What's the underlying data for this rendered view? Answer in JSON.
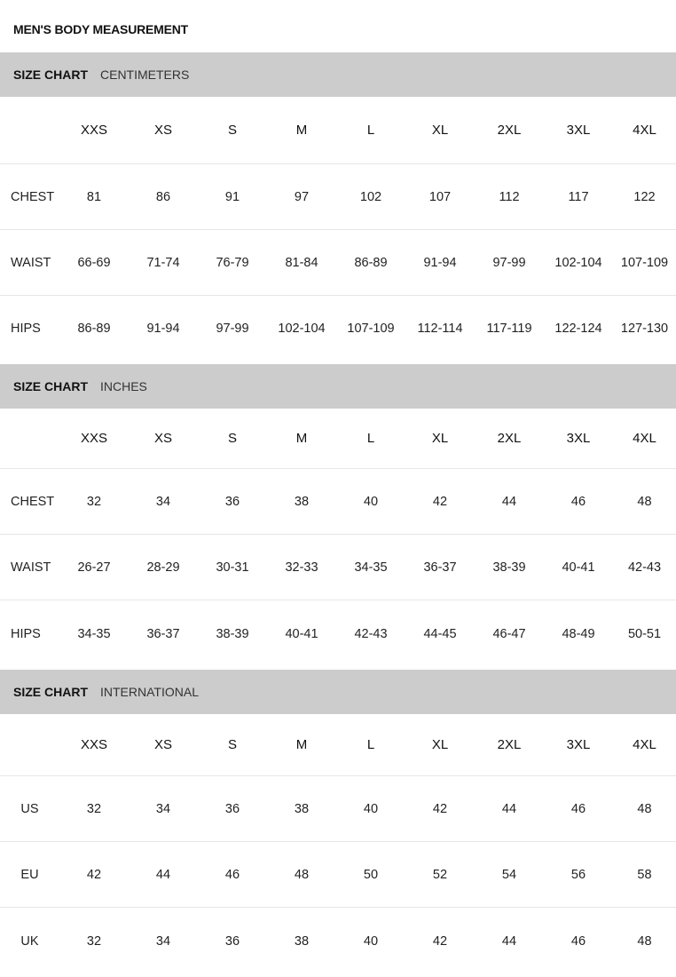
{
  "title": "MEN'S BODY MEASUREMENT",
  "sizes": [
    "XXS",
    "XS",
    "S",
    "M",
    "L",
    "XL",
    "2XL",
    "3XL",
    "4XL"
  ],
  "sections": [
    {
      "label": "SIZE CHART",
      "unit": "CENTIMETERS",
      "rows": [
        {
          "name": "CHEST",
          "values": [
            "81",
            "86",
            "91",
            "97",
            "102",
            "107",
            "112",
            "117",
            "122"
          ]
        },
        {
          "name": "WAIST",
          "values": [
            "66-69",
            "71-74",
            "76-79",
            "81-84",
            "86-89",
            "91-94",
            "97-99",
            "102-104",
            "107-109"
          ]
        },
        {
          "name": "HIPS",
          "values": [
            "86-89",
            "91-94",
            "97-99",
            "102-104",
            "107-109",
            "112-114",
            "117-119",
            "122-124",
            "127-130"
          ]
        }
      ]
    },
    {
      "label": "SIZE CHART",
      "unit": "INCHES",
      "rows": [
        {
          "name": "CHEST",
          "values": [
            "32",
            "34",
            "36",
            "38",
            "40",
            "42",
            "44",
            "46",
            "48"
          ]
        },
        {
          "name": "WAIST",
          "values": [
            "26-27",
            "28-29",
            "30-31",
            "32-33",
            "34-35",
            "36-37",
            "38-39",
            "40-41",
            "42-43"
          ]
        },
        {
          "name": "HIPS",
          "values": [
            "34-35",
            "36-37",
            "38-39",
            "40-41",
            "42-43",
            "44-45",
            "46-47",
            "48-49",
            "50-51"
          ]
        }
      ]
    },
    {
      "label": "SIZE CHART",
      "unit": "INTERNATIONAL",
      "rows": [
        {
          "name": "US",
          "values": [
            "32",
            "34",
            "36",
            "38",
            "40",
            "42",
            "44",
            "46",
            "48"
          ]
        },
        {
          "name": "EU",
          "values": [
            "42",
            "44",
            "46",
            "48",
            "50",
            "52",
            "54",
            "56",
            "58"
          ]
        },
        {
          "name": "UK",
          "values": [
            "32",
            "34",
            "36",
            "38",
            "40",
            "42",
            "44",
            "46",
            "48"
          ]
        }
      ]
    }
  ],
  "colors": {
    "header_bar": "#cccccc",
    "divider": "#e6e6e6"
  }
}
